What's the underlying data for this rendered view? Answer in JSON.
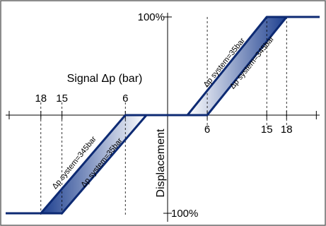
{
  "chart_data": {
    "type": "line",
    "xlabel": "Signal Δp (bar)",
    "ylabel": "Displacement",
    "xlim": [
      -23,
      23
    ],
    "ylim": [
      -100,
      100
    ],
    "y_max_label": "100%",
    "y_min_label": "100%",
    "x_ticks_negative": [
      "18",
      "15",
      "6"
    ],
    "x_ticks_positive": [
      "6",
      "15",
      "18"
    ],
    "series": [
      {
        "values": [
          [
            -23,
            -100
          ],
          [
            -18,
            -100
          ],
          [
            -6,
            0
          ],
          [
            6,
            0
          ],
          [
            18,
            100
          ],
          [
            23,
            100
          ]
        ]
      },
      {
        "values": [
          [
            -23,
            -100
          ],
          [
            -15,
            -100
          ],
          [
            -3,
            0
          ],
          [
            3,
            0
          ],
          [
            15,
            100
          ],
          [
            23,
            100
          ]
        ]
      }
    ],
    "annotations": [
      "Δp system=345bar",
      "Δp system=35bar",
      "Δp system=35bar",
      "Δp system=345bar"
    ],
    "colors": {
      "curve": "#0d2a73",
      "band_dark": "#1d3f8f",
      "band_light": "#ffffff",
      "frame": "#666666"
    }
  }
}
